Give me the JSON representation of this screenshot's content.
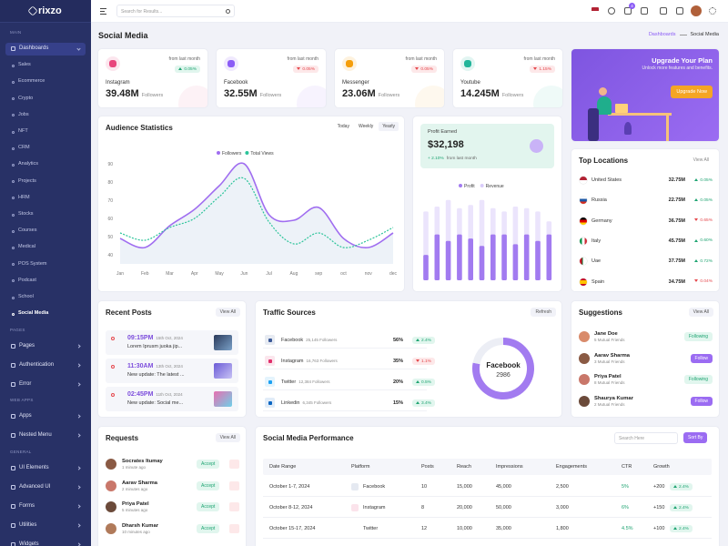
{
  "brand": "rixzo",
  "sidebar": [
    {
      "heading": "MAIN",
      "items": [
        {
          "label": "Dashboards",
          "active": true,
          "current": 15,
          "children": [
            "Sales",
            "Ecommerce",
            "Crypto",
            "Jobs",
            "NFT",
            "CRM",
            "Analytics",
            "Projects",
            "HRM",
            "Stocks",
            "Courses",
            "Medical",
            "POS System",
            "Podcast",
            "School",
            "Social Media"
          ]
        }
      ]
    },
    {
      "heading": "PAGES",
      "items": [
        {
          "label": "Pages"
        },
        {
          "label": "Authentication"
        },
        {
          "label": "Error"
        }
      ]
    },
    {
      "heading": "WEB APPS",
      "items": [
        {
          "label": "Apps"
        },
        {
          "label": "Nested Menu"
        }
      ]
    },
    {
      "heading": "GENERAL",
      "items": [
        {
          "label": "UI Elements"
        },
        {
          "label": "Advanced UI"
        },
        {
          "label": "Forms"
        },
        {
          "label": "Utilities"
        },
        {
          "label": "Widgets"
        }
      ]
    }
  ],
  "header": {
    "search": "Search for Results...",
    "cart_badge": "4"
  },
  "page": {
    "title": "Social Media",
    "breadcrumb": [
      "Dashboards",
      "Social Media"
    ]
  },
  "stats": [
    {
      "platform": "Instagram",
      "value": "39.48M",
      "unit": "Followers",
      "caption": "from last month",
      "change": "0.05%",
      "trend": "up",
      "color": "#e8457c"
    },
    {
      "platform": "Facebook",
      "value": "32.55M",
      "unit": "Followers",
      "caption": "from last month",
      "change": "0.05%",
      "trend": "down",
      "color": "#8b5cf6"
    },
    {
      "platform": "Messenger",
      "value": "23.06M",
      "unit": "Followers",
      "caption": "from last month",
      "change": "0.05%",
      "trend": "down",
      "color": "#f59e0b"
    },
    {
      "platform": "Youtube",
      "value": "14.245M",
      "unit": "Followers",
      "caption": "from last month",
      "change": "1.15%",
      "trend": "down",
      "color": "#22b59a"
    }
  ],
  "upgrade": {
    "title": "Upgrade Your Plan",
    "text": "Unlock more features and benefits.",
    "button": "Upgrade Now"
  },
  "audience_tabs": {
    "items": [
      "Today",
      "Weekly",
      "Yearly"
    ],
    "active": 2
  },
  "profit": {
    "label": "Profit Earned",
    "value": "$32,198",
    "change": "+ 2.10%",
    "caption": "from last month"
  },
  "chart_data": [
    {
      "type": "line",
      "title": "Audience Statistics",
      "categories": [
        "Jan",
        "Feb",
        "Mar",
        "Apr",
        "May",
        "Jun",
        "Jul",
        "Aug",
        "sep",
        "oct",
        "nov",
        "dec"
      ],
      "series": [
        {
          "name": "Followers",
          "color": "#a06ef0",
          "values": [
            49,
            44,
            56,
            65,
            78,
            90,
            62,
            59,
            66,
            49,
            44,
            52
          ]
        },
        {
          "name": "Total Views",
          "color": "#2cc49a",
          "dashed": true,
          "values": [
            52,
            48,
            55,
            60,
            72,
            82,
            58,
            46,
            52,
            44,
            48,
            55
          ]
        }
      ],
      "ylim": [
        35,
        95
      ],
      "yticks": [
        40,
        50,
        60,
        70,
        80,
        90
      ]
    },
    {
      "type": "bar",
      "categories": [
        null,
        null,
        null,
        null,
        null,
        null,
        null,
        null,
        null,
        null,
        null,
        null
      ],
      "series": [
        {
          "name": "Profit",
          "color": "#a27bf0",
          "values": [
            31,
            56,
            48,
            56,
            51,
            42,
            56,
            56,
            44,
            56,
            48,
            56
          ]
        },
        {
          "name": "Revenue",
          "color": "#ebe4fc",
          "values": [
            84,
            90,
            98,
            88,
            92,
            98,
            88,
            84,
            90,
            88,
            84,
            72
          ]
        }
      ],
      "ylim": [
        0,
        100
      ]
    },
    {
      "type": "donut",
      "center_label": "Facebook",
      "center_value": "2986",
      "values": [
        78,
        22
      ],
      "colors": [
        "#a27bf0",
        "#eceef5"
      ]
    }
  ],
  "locations": {
    "title": "Top Locations",
    "action": "View All",
    "rows": [
      {
        "country": "United States",
        "value": "32.75M",
        "change": "0.05%",
        "trend": "up"
      },
      {
        "country": "Russia",
        "value": "22.75M",
        "change": "0.05%",
        "trend": "up"
      },
      {
        "country": "Germany",
        "value": "36.75M",
        "change": "0.65%",
        "trend": "down"
      },
      {
        "country": "Italy",
        "value": "45.75M",
        "change": "0.60%",
        "trend": "up"
      },
      {
        "country": "Uae",
        "value": "37.75M",
        "change": "0.72%",
        "trend": "up"
      },
      {
        "country": "Spain",
        "value": "34.75M",
        "change": "0.04%",
        "trend": "down"
      }
    ]
  },
  "posts": {
    "title": "Recent Posts",
    "action": "View All",
    "rows": [
      {
        "time": "09:15PM",
        "date": "15th Oct, 2024",
        "text": "Lorem Iprusm juoka jip..."
      },
      {
        "time": "11:30AM",
        "date": "13th Oct, 2024",
        "text": "New update: The latest ..."
      },
      {
        "time": "02:45PM",
        "date": "11th Oct, 2024",
        "text": "New update: Social me..."
      }
    ]
  },
  "traffic": {
    "title": "Traffic Sources",
    "action": "Refresh",
    "rows": [
      {
        "name": "Facebook",
        "followers": "25,145 Followers",
        "share": "56%",
        "change": "2.4%",
        "trend": "up"
      },
      {
        "name": "Instagram",
        "followers": "16,763 Followers",
        "share": "35%",
        "change": "1.1%",
        "trend": "down"
      },
      {
        "name": "Twitter",
        "followers": "12,384 Followers",
        "share": "20%",
        "change": "0.5%",
        "trend": "up"
      },
      {
        "name": "Linkedin",
        "followers": "6,345 Followers",
        "share": "15%",
        "change": "3.4%",
        "trend": "up"
      }
    ]
  },
  "suggestions": {
    "title": "Suggestions",
    "action": "View All",
    "rows": [
      {
        "name": "Jane Doe",
        "mutual": "5 Mutual Friends",
        "button": "Following",
        "following": true
      },
      {
        "name": "Aarav Sharma",
        "mutual": "3 Mutual Friends",
        "button": "Follow",
        "following": false
      },
      {
        "name": "Priya Patel",
        "mutual": "8 Mutual Friends",
        "button": "Following",
        "following": true
      },
      {
        "name": "Shaurya Kumar",
        "mutual": "2 Mutual Friends",
        "button": "Follow",
        "following": false
      }
    ]
  },
  "requests": {
    "title": "Requests",
    "action": "View All",
    "rows": [
      {
        "name": "Socrates Itumay",
        "time": "1 minute ago",
        "button": "Accept"
      },
      {
        "name": "Aarav Sharma",
        "time": "2 minutes ago",
        "button": "Accept"
      },
      {
        "name": "Priya Patel",
        "time": "5 minutes ago",
        "button": "Accept"
      },
      {
        "name": "Dharsh Kumar",
        "time": "10 minutes ago",
        "button": "Accept"
      }
    ]
  },
  "performance": {
    "title": "Social Media Performance",
    "search": "Search Here",
    "sort": "Sort By",
    "columns": [
      "Date Range",
      "Platform",
      "Posts",
      "Reach",
      "Impressions",
      "Engagements",
      "CTR",
      "Growth"
    ],
    "rows": [
      {
        "date": "October 1-7, 2024",
        "platform": "Facebook",
        "posts": "10",
        "reach": "15,000",
        "impressions": "45,000",
        "engagements": "2,500",
        "ctr": "5%",
        "growth": "+200",
        "change": "2.4%",
        "trend": "up"
      },
      {
        "date": "October 8-12, 2024",
        "platform": "Instagram",
        "posts": "8",
        "reach": "20,000",
        "impressions": "50,000",
        "engagements": "3,000",
        "ctr": "6%",
        "growth": "+150",
        "change": "2.4%",
        "trend": "up"
      },
      {
        "date": "October 15-17, 2024",
        "platform": "Twitter",
        "posts": "12",
        "reach": "10,000",
        "impressions": "35,000",
        "engagements": "1,800",
        "ctr": "4.5%",
        "growth": "+100",
        "change": "2.4%",
        "trend": "up"
      }
    ]
  }
}
